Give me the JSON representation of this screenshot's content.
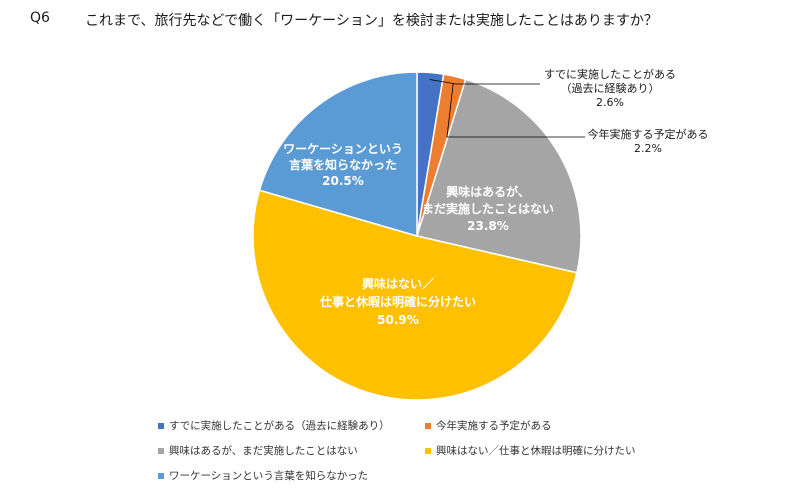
{
  "question": {
    "number": "Q6",
    "text": "これまで、旅行先などで働く「ワーケーション」を検討または実施したことはありますか？"
  },
  "chart_data": {
    "type": "pie",
    "title": "これまで、旅行先などで働く「ワーケーション」を検討または実施したことはありますか？",
    "start_angle": "12 o'clock, clockwise",
    "slices": [
      {
        "name": "すでに実施したことがある（過去に経験あり）",
        "value": 2.6,
        "color": "#4472C4",
        "label_lines": [
          "すでに実施したことがある",
          "（過去に経験あり）",
          "2.6%"
        ],
        "label_position": "outside-callout"
      },
      {
        "name": "今年実施する予定がある",
        "value": 2.2,
        "color": "#ED7D31",
        "label_lines": [
          "今年実施する予定がある",
          "2.2%"
        ],
        "label_position": "outside-callout"
      },
      {
        "name": "興味はあるが、まだ実施したことはない",
        "value": 23.8,
        "color": "#A5A5A5",
        "label_lines": [
          "興味はあるが、",
          "まだ実施したことはない",
          "23.8%"
        ],
        "label_position": "inside"
      },
      {
        "name": "興味はない／仕事と休暇は明確に分けたい",
        "value": 50.9,
        "color": "#FFC000",
        "label_lines": [
          "興味はない／",
          "仕事と休暇は明確に分けたい",
          "50.9%"
        ],
        "label_position": "inside"
      },
      {
        "name": "ワーケーションという言葉を知らなかった",
        "value": 20.5,
        "color": "#5B9BD5",
        "label_lines": [
          "ワーケーションという",
          "言葉を知らなかった",
          "20.5%"
        ],
        "label_position": "inside"
      }
    ],
    "legend": {
      "placement": "bottom",
      "entries": [
        "すでに実施したことがある（過去に経験あり）",
        "今年実施する予定がある",
        "興味はあるが、まだ実施したことはない",
        "興味はない／仕事と休暇は明確に分けたい",
        "ワーケーションという言葉を知らなかった"
      ]
    }
  }
}
